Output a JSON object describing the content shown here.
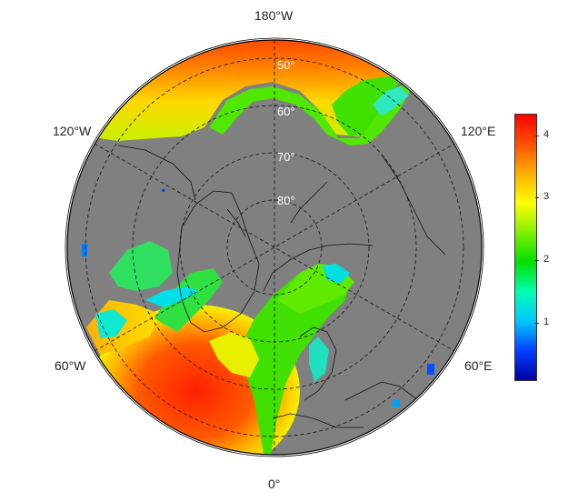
{
  "map": {
    "projection": "north-polar-stereographic",
    "land_color": "#808080",
    "ocean_background": "#808080",
    "longitude_labels": {
      "top": "180°W",
      "upper_left": "120°W",
      "upper_right": "120°E",
      "lower_left": "60°W",
      "lower_right": "60°E",
      "bottom": "0°"
    },
    "latitude_labels": [
      "50°",
      "60°",
      "70°",
      "80°"
    ]
  },
  "colorbar": {
    "ticks": [
      "1",
      "2",
      "3",
      "4"
    ],
    "colormap": "jet",
    "colors": [
      "#0000a0",
      "#0040ff",
      "#00c8ff",
      "#00ffb0",
      "#00e000",
      "#80f000",
      "#ffff00",
      "#ffb000",
      "#ff5000",
      "#ff0000"
    ]
  }
}
